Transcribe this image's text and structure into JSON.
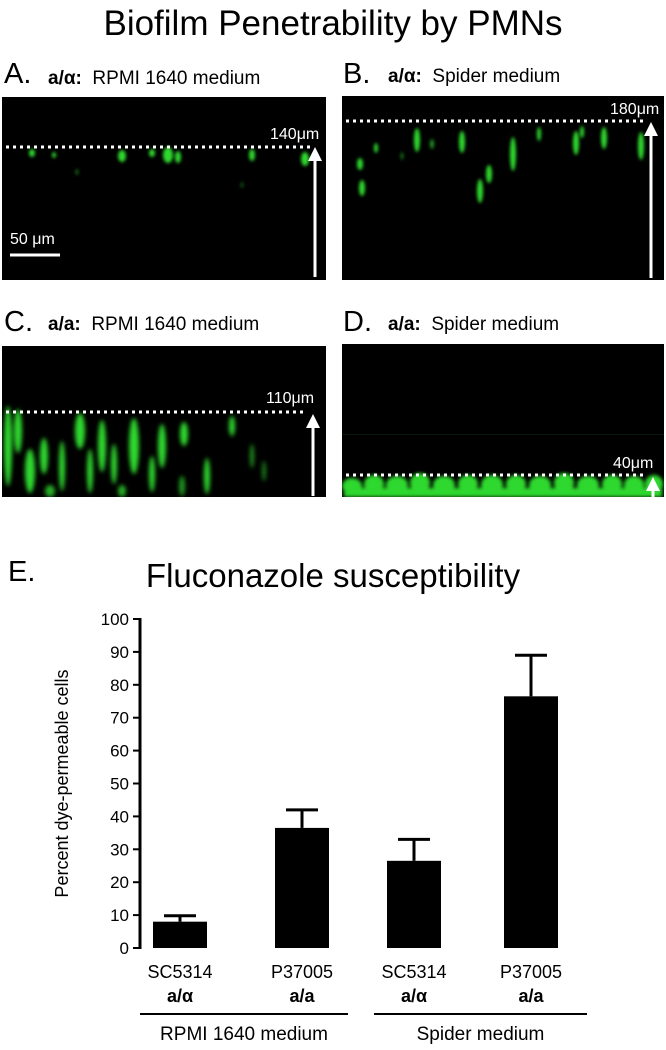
{
  "figure": {
    "title": "Biofilm Penetrability by PMNs",
    "panels": [
      {
        "letter": "A.",
        "strain": "a/α:",
        "medium": "RPMI 1640 medium",
        "depth_label": "140μm",
        "scale_bar": "50 μm"
      },
      {
        "letter": "B.",
        "strain": "a/α:",
        "medium": "Spider medium",
        "depth_label": "180μm"
      },
      {
        "letter": "C.",
        "strain": "a/a:",
        "medium": "RPMI 1640 medium",
        "depth_label": "110μm"
      },
      {
        "letter": "D.",
        "strain": "a/a:",
        "medium": "Spider medium",
        "depth_label": "40μm"
      }
    ],
    "panel_e_letter": "E.",
    "panel_e_title": "Fluconazole susceptibility"
  },
  "chart_data": {
    "type": "bar",
    "title": "Fluconazole susceptibility",
    "ylabel": "Percent dye-permeable cells",
    "ylim": [
      0,
      100
    ],
    "yticks": [
      0,
      10,
      20,
      30,
      40,
      50,
      60,
      70,
      80,
      90,
      100
    ],
    "categories": [
      {
        "strain": "SC5314",
        "mating": "a/α"
      },
      {
        "strain": "P37005",
        "mating": "a/a"
      },
      {
        "strain": "SC5314",
        "mating": "a/α"
      },
      {
        "strain": "P37005",
        "mating": "a/a"
      }
    ],
    "values": [
      8,
      36.5,
      26.5,
      76.5
    ],
    "errors": [
      1.8,
      5.5,
      6.5,
      12.5
    ],
    "bar_color": "#000000",
    "groups": [
      {
        "label": "RPMI 1640 medium",
        "categories": [
          0,
          1
        ]
      },
      {
        "label": "Spider medium",
        "categories": [
          2,
          3
        ]
      }
    ]
  }
}
